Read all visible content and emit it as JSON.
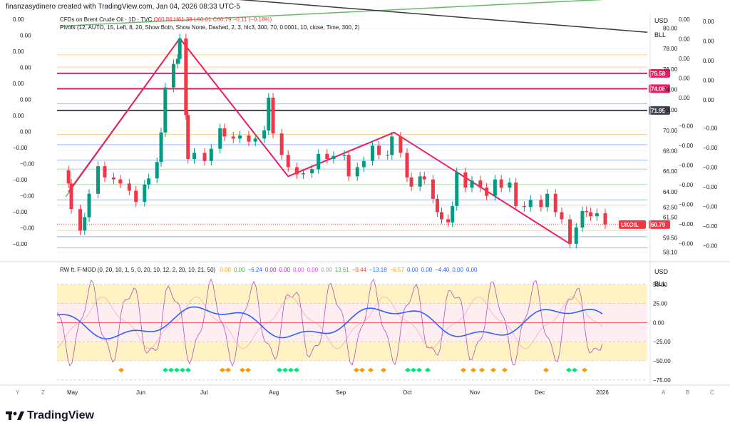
{
  "header": {
    "created_line": "finanzasydinero created with TradingView.com, Jan 04, 2026 08:33 UTC-5"
  },
  "legend": {
    "title_line": "CFDs on Brent Crude Oil · 1D · TVC",
    "ohlc": "O60.86  H61.38  L60.01  C60.79  −0.11 (−0.18%)",
    "pivots_line": "Pivots (12, AUTO, 15, Left, 8, 20, Show Both, Show None, Dashed, 2, 3, hlc3, 300, 70, 0.0001, 10, close, Time, 300, 2)"
  },
  "indicator": {
    "title": "RW ft. F-MOD (0, 20, 10, 1, 5, 0, 20, 10, 12, 2, 20, 10, 21, 50)",
    "values": [
      {
        "text": "0.00",
        "color": "#ff9800"
      },
      {
        "text": "0.00",
        "color": "#4caf50"
      },
      {
        "text": "−6.24",
        "color": "#2962ff"
      },
      {
        "text": "0.00",
        "color": "#9c27b0"
      },
      {
        "text": "0.00",
        "color": "#9c27b0"
      },
      {
        "text": "0.00",
        "color": "#e040fb"
      },
      {
        "text": "0.00",
        "color": "#e040fb"
      },
      {
        "text": "0.00",
        "color": "#9e9e9e"
      },
      {
        "text": "13.61",
        "color": "#4caf50"
      },
      {
        "text": "−0.44",
        "color": "#f44336"
      },
      {
        "text": "−13.18",
        "color": "#2962ff"
      },
      {
        "text": "−6.57",
        "color": "#ff9800"
      },
      {
        "text": "0.00",
        "color": "#2962ff"
      },
      {
        "text": "0.00",
        "color": "#2962ff"
      },
      {
        "text": "−4.40",
        "color": "#2962ff"
      },
      {
        "text": "0.00",
        "color": "#2962ff"
      },
      {
        "text": "0.00",
        "color": "#2962ff"
      }
    ]
  },
  "price_scale": {
    "currency": "USD",
    "ticks": [
      "80.00",
      "78.00",
      "76.00",
      "74.00",
      "72.00",
      "70.00",
      "68.00",
      "66.00",
      "64.00",
      "62.50",
      "61.50",
      "59.50",
      "58.10"
    ],
    "badges": [
      {
        "text": "75.58",
        "color": "#e91e63"
      },
      {
        "text": "74.08",
        "color": "#e91e63"
      },
      {
        "text": "71.95",
        "color": "#434651"
      },
      {
        "text": "UKOIL",
        "color": "#f23645"
      },
      {
        "text": "60.79",
        "color": "#f23645"
      }
    ],
    "bll": "BLL"
  },
  "osc_scale": {
    "currency": "USD",
    "bll": "BLL",
    "ticks": [
      "50.00",
      "25.00",
      "0.00",
      "−25.00",
      "−50.00",
      "−75.00"
    ]
  },
  "side_columns": {
    "left_values": [
      "0.00",
      "0.00",
      "0.00",
      "0.00",
      "0.00",
      "0.00",
      "0.00",
      "0.00",
      "−0.00",
      "−0.00",
      "−0.00",
      "−0.00",
      "−0.00",
      "−0.00",
      "−0.00"
    ],
    "right_values_a": [
      "0.00",
      "0.00",
      "0.00",
      "0.00",
      "0.00",
      "−0.00",
      "−0.00",
      "−0.00",
      "−0.00",
      "−0.00",
      "−0.00",
      "−0.00"
    ],
    "right_values_b": [
      "0.00",
      "0.00",
      "0.00",
      "0.00",
      "0.00",
      "−0.00",
      "−0.00",
      "−0.00",
      "−0.00",
      "−0.00",
      "−0.00",
      "−0.00"
    ]
  },
  "time_axis": {
    "labels": [
      "May",
      "Jun",
      "Jul",
      "Aug",
      "Sep",
      "Oct",
      "Nov",
      "Dec",
      "2026"
    ],
    "corner_left": [
      "Y",
      "Z"
    ],
    "corner_right": [
      "A",
      "B",
      "C"
    ]
  },
  "footer": {
    "brand": "TradingView"
  },
  "colors": {
    "up": "#089981",
    "down": "#f23645",
    "zigzag_pink": "#e91e63",
    "trend_green": "#66bb6a",
    "trend_black": "#363a45",
    "osc_blue": "#2962ff",
    "osc_purple": "#9c27b0",
    "band_yellow": "#fff3c4",
    "band_pink": "#fde0e6"
  },
  "chart_data": {
    "type": "candlestick",
    "symbol": "UKOIL",
    "title": "CFDs on Brent Crude Oil · 1D · TVC",
    "x_labels": [
      "May",
      "Jun",
      "Jul",
      "Aug",
      "Sep",
      "Oct",
      "Nov",
      "Dec",
      "2026"
    ],
    "ylim": [
      57.5,
      81.5
    ],
    "close_path": [
      [
        "Apr 24",
        66.1
      ],
      [
        "Apr 28",
        64.8
      ],
      [
        "May 1",
        62.3
      ],
      [
        "May 5",
        60.2
      ],
      [
        "May 7",
        61.5
      ],
      [
        "May 9",
        63.8
      ],
      [
        "May 13",
        66.5
      ],
      [
        "May 16",
        65.4
      ],
      [
        "May 20",
        65.2
      ],
      [
        "May 23",
        64.8
      ],
      [
        "May 27",
        64.1
      ],
      [
        "May 30",
        63.0
      ],
      [
        "Jun 3",
        64.7
      ],
      [
        "Jun 5",
        65.3
      ],
      [
        "Jun 9",
        66.9
      ],
      [
        "Jun 11",
        69.8
      ],
      [
        "Jun 13",
        74.2
      ],
      [
        "Jun 17",
        76.5
      ],
      [
        "Jun 19",
        77.0
      ],
      [
        "Jun 20",
        79.0
      ],
      [
        "Jun 23",
        71.5
      ],
      [
        "Jun 24",
        67.2
      ],
      [
        "Jun 27",
        67.8
      ],
      [
        "Jul 1",
        67.0
      ],
      [
        "Jul 4",
        68.2
      ],
      [
        "Jul 8",
        70.2
      ],
      [
        "Jul 10",
        69.4
      ],
      [
        "Jul 14",
        69.2
      ],
      [
        "Jul 17",
        69.5
      ],
      [
        "Jul 21",
        68.9
      ],
      [
        "Jul 24",
        69.2
      ],
      [
        "Jul 28",
        70.0
      ],
      [
        "Jul 30",
        73.2
      ],
      [
        "Aug 1",
        69.7
      ],
      [
        "Aug 5",
        67.6
      ],
      [
        "Aug 8",
        66.4
      ],
      [
        "Aug 12",
        65.7
      ],
      [
        "Aug 15",
        65.8
      ],
      [
        "Aug 19",
        66.2
      ],
      [
        "Aug 22",
        67.7
      ],
      [
        "Aug 26",
        67.2
      ],
      [
        "Aug 29",
        67.5
      ],
      [
        "Sep 3",
        67.6
      ],
      [
        "Sep 5",
        65.5
      ],
      [
        "Sep 9",
        66.4
      ],
      [
        "Sep 12",
        67.0
      ],
      [
        "Sep 16",
        68.5
      ],
      [
        "Sep 19",
        67.6
      ],
      [
        "Sep 23",
        67.6
      ],
      [
        "Sep 25",
        69.4
      ],
      [
        "Sep 29",
        67.8
      ],
      [
        "Oct 1",
        65.4
      ],
      [
        "Oct 3",
        64.5
      ],
      [
        "Oct 7",
        65.5
      ],
      [
        "Oct 9",
        65.2
      ],
      [
        "Oct 13",
        63.3
      ],
      [
        "Oct 15",
        62.0
      ],
      [
        "Oct 17",
        61.3
      ],
      [
        "Oct 20",
        61.0
      ],
      [
        "Oct 22",
        62.6
      ],
      [
        "Oct 24",
        65.9
      ],
      [
        "Oct 28",
        64.4
      ],
      [
        "Oct 31",
        65.1
      ],
      [
        "Nov 4",
        64.4
      ],
      [
        "Nov 7",
        63.6
      ],
      [
        "Nov 11",
        65.2
      ],
      [
        "Nov 14",
        64.4
      ],
      [
        "Nov 18",
        64.9
      ],
      [
        "Nov 21",
        62.6
      ],
      [
        "Nov 25",
        62.5
      ],
      [
        "Nov 28",
        63.2
      ],
      [
        "Dec 2",
        62.5
      ],
      [
        "Dec 5",
        63.8
      ],
      [
        "Dec 9",
        62.0
      ],
      [
        "Dec 12",
        61.3
      ],
      [
        "Dec 16",
        58.9
      ],
      [
        "Dec 19",
        60.5
      ],
      [
        "Dec 22",
        62.1
      ],
      [
        "Dec 24",
        62.0
      ],
      [
        "Dec 26",
        61.6
      ],
      [
        "Dec 29",
        61.9
      ],
      [
        "Jan 2",
        60.79
      ]
    ],
    "zigzag": [
      [
        64.0,
        "Apr 28"
      ],
      [
        79.0,
        "Jun 20"
      ],
      [
        65.5,
        "Aug 8"
      ],
      [
        69.8,
        "Sep 26"
      ],
      [
        58.9,
        "Dec 16"
      ]
    ],
    "series": [
      {
        "name": "UKOIL",
        "last": 60.79
      },
      {
        "name": "Oscillator (blue)",
        "range": [
          -30,
          30
        ]
      },
      {
        "name": "Oscillator (purple)",
        "range": [
          -60,
          60
        ]
      }
    ]
  }
}
